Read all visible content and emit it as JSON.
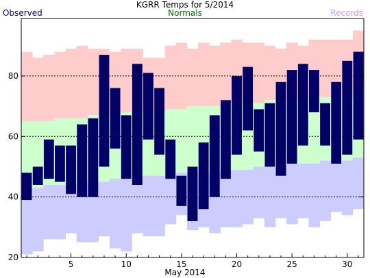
{
  "chart_data": {
    "type": "bar",
    "title": "KGRR Temps for 5/2014",
    "xlabel": "May 2014",
    "ylabel": "",
    "xlim": [
      0.5,
      31.5
    ],
    "ylim": [
      20,
      99
    ],
    "yticks": [
      20,
      40,
      60,
      80
    ],
    "xticks": [
      5,
      10,
      15,
      20,
      25,
      30
    ],
    "gridlines_y": [
      40,
      60,
      80
    ],
    "legend": [
      "Observed",
      "Normals",
      "Records"
    ],
    "legend_placement": "top",
    "colors": {
      "observed": "#000066",
      "normals": "#ccffcc",
      "records_high": "#ffcccc",
      "records_low": "#ccccff",
      "legend_observed": "#000066",
      "legend_normals": "#006600",
      "legend_records": "#cc99ff"
    },
    "days": [
      1,
      2,
      3,
      4,
      5,
      6,
      7,
      8,
      9,
      10,
      11,
      12,
      13,
      14,
      15,
      16,
      17,
      18,
      19,
      20,
      21,
      22,
      23,
      24,
      25,
      26,
      27,
      28,
      29,
      30,
      31
    ],
    "observed_high": [
      48,
      50,
      59,
      57,
      57,
      64,
      66,
      87,
      76,
      67,
      84,
      81,
      76,
      59,
      47,
      50,
      58,
      67,
      72,
      80,
      83,
      69,
      71,
      78,
      82,
      84,
      82,
      71,
      78,
      85,
      88
    ],
    "observed_low": [
      39,
      44,
      46,
      45,
      41,
      40,
      40,
      50,
      56,
      46,
      44,
      59,
      54,
      46,
      37,
      32,
      36,
      40,
      46,
      54,
      62,
      55,
      50,
      47,
      51,
      57,
      68,
      57,
      51,
      54,
      59
    ],
    "normal_high": [
      65,
      65,
      65,
      66,
      66,
      66,
      67,
      67,
      67,
      68,
      68,
      68,
      68,
      69,
      69,
      70,
      70,
      70,
      70,
      71,
      71,
      71,
      72,
      72,
      72,
      72,
      73,
      73,
      73,
      73,
      74
    ],
    "normal_low": [
      43,
      43,
      44,
      44,
      44,
      45,
      45,
      45,
      46,
      46,
      46,
      47,
      47,
      47,
      48,
      48,
      48,
      48,
      49,
      49,
      49,
      50,
      50,
      50,
      51,
      51,
      51,
      52,
      52,
      52,
      53
    ],
    "record_high": [
      88,
      86,
      87,
      88,
      89,
      90,
      89,
      89,
      88,
      89,
      89,
      86,
      86,
      90,
      91,
      89,
      91,
      90,
      91,
      92,
      91,
      91,
      90,
      89,
      91,
      90,
      92,
      92,
      92,
      92,
      95
    ],
    "record_low": [
      21,
      22,
      26,
      26,
      28,
      25,
      25,
      27,
      23,
      22,
      28,
      27,
      27,
      31,
      34,
      29,
      30,
      28,
      30,
      30,
      31,
      33,
      30,
      33,
      31,
      33,
      30,
      32,
      35,
      34,
      36
    ]
  }
}
